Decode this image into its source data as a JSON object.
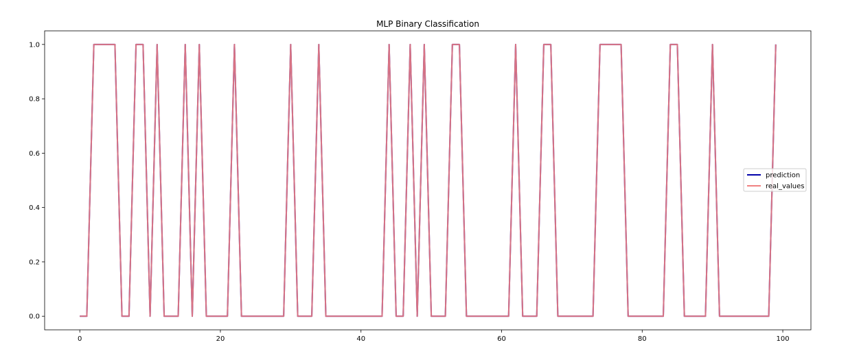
{
  "chart_data": {
    "type": "line",
    "title": "MLP Binary Classification",
    "xlabel": "",
    "ylabel": "",
    "xlim": [
      -5,
      104
    ],
    "ylim": [
      -0.05,
      1.05
    ],
    "xticks": [
      0,
      20,
      40,
      60,
      80,
      100
    ],
    "yticks": [
      0.0,
      0.2,
      0.4,
      0.6,
      0.8,
      1.0
    ],
    "xtick_labels": [
      "0",
      "20",
      "40",
      "60",
      "80",
      "100"
    ],
    "ytick_labels": [
      "0.0",
      "0.2",
      "0.4",
      "0.6",
      "0.8",
      "1.0"
    ],
    "grid": false,
    "legend_position": "center-right",
    "x": [
      0,
      1,
      2,
      3,
      4,
      5,
      6,
      7,
      8,
      9,
      10,
      11,
      12,
      13,
      14,
      15,
      16,
      17,
      18,
      19,
      20,
      21,
      22,
      23,
      24,
      25,
      26,
      27,
      28,
      29,
      30,
      31,
      32,
      33,
      34,
      35,
      36,
      37,
      38,
      39,
      40,
      41,
      42,
      43,
      44,
      45,
      46,
      47,
      48,
      49,
      50,
      51,
      52,
      53,
      54,
      55,
      56,
      57,
      58,
      59,
      60,
      61,
      62,
      63,
      64,
      65,
      66,
      67,
      68,
      69,
      70,
      71,
      72,
      73,
      74,
      75,
      76,
      77,
      78,
      79,
      80,
      81,
      82,
      83,
      84,
      85,
      86,
      87,
      88,
      89,
      90,
      91,
      92,
      93,
      94,
      95,
      96,
      97,
      98,
      99
    ],
    "series": [
      {
        "name": "prediction",
        "color": "#0000aa",
        "values": [
          0,
          0,
          1,
          1,
          1,
          1,
          0,
          0,
          1,
          1,
          0,
          1,
          0,
          0,
          0,
          1,
          0,
          1,
          0,
          0,
          0,
          0,
          1,
          0,
          0,
          0,
          0,
          0,
          0,
          0,
          1,
          0,
          0,
          0,
          1,
          0,
          0,
          0,
          0,
          0,
          0,
          0,
          0,
          0,
          1,
          0,
          0,
          1,
          0,
          1,
          0,
          0,
          0,
          1,
          1,
          0,
          0,
          0,
          0,
          0,
          0,
          0,
          1,
          0,
          0,
          0,
          1,
          1,
          0,
          0,
          0,
          0,
          0,
          0,
          1,
          1,
          1,
          1,
          0,
          0,
          0,
          0,
          0,
          0,
          1,
          1,
          0,
          0,
          0,
          0,
          1,
          0,
          0,
          0,
          0,
          0,
          0,
          0,
          0,
          1
        ]
      },
      {
        "name": "real_values",
        "color": "#f08080",
        "values": [
          0,
          0,
          1,
          1,
          1,
          1,
          0,
          0,
          1,
          1,
          0,
          1,
          0,
          0,
          0,
          1,
          0,
          1,
          0,
          0,
          0,
          0,
          1,
          0,
          0,
          0,
          0,
          0,
          0,
          0,
          1,
          0,
          0,
          0,
          1,
          0,
          0,
          0,
          0,
          0,
          0,
          0,
          0,
          0,
          1,
          0,
          0,
          1,
          0,
          1,
          0,
          0,
          0,
          1,
          1,
          0,
          0,
          0,
          0,
          0,
          0,
          0,
          1,
          0,
          0,
          0,
          1,
          1,
          0,
          0,
          0,
          0,
          0,
          0,
          1,
          1,
          1,
          1,
          0,
          0,
          0,
          0,
          0,
          0,
          1,
          1,
          0,
          0,
          0,
          0,
          1,
          0,
          0,
          0,
          0,
          0,
          0,
          0,
          0,
          1
        ]
      }
    ]
  }
}
